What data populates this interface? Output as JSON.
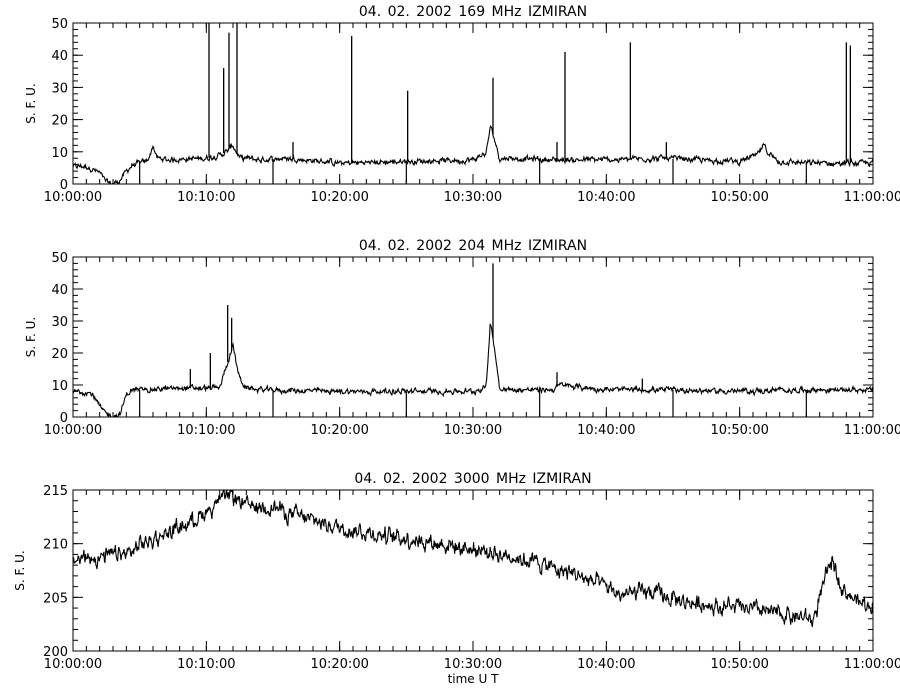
{
  "chart_data": [
    {
      "type": "line",
      "title": "04.  02.  2002    169  MHz    IZMIRAN",
      "ylabel": "S. F. U.",
      "xlabel": "",
      "xlim": [
        "10:00:00",
        "11:00:00"
      ],
      "ylim": [
        0,
        50
      ],
      "yticks": [
        "0",
        "10",
        "20",
        "30",
        "40",
        "50"
      ],
      "xticks": [
        "10:00:00",
        "10:10:00",
        "10:20:00",
        "10:30:00",
        "10:40:00",
        "10:50:00",
        "11:00:00"
      ],
      "series": [
        {
          "x_minutes": [
            0,
            1,
            2,
            2.5,
            3,
            3.5,
            4,
            4.5,
            5,
            5.5,
            5.8,
            6,
            6.3,
            7,
            10,
            11,
            11.5,
            12,
            12.5,
            13,
            14,
            16,
            20,
            25,
            30,
            31,
            31.3,
            31.6,
            32,
            33,
            36,
            40,
            44,
            50,
            51.3,
            51.8,
            52.3,
            53,
            55,
            60
          ],
          "y": [
            5.5,
            5.5,
            3.5,
            0.5,
            0,
            1,
            4,
            6,
            6.5,
            7,
            9,
            12,
            8,
            7.5,
            8,
            9,
            10,
            12,
            8,
            8,
            7.5,
            8,
            6.5,
            7,
            7.5,
            9.5,
            18,
            14,
            8,
            8,
            7.5,
            7.5,
            8,
            7,
            9,
            12,
            9,
            7,
            6.5,
            6.5
          ]
        }
      ],
      "spikes": [
        {
          "x": 10.2,
          "y": 50
        },
        {
          "x": 11.3,
          "y": 36
        },
        {
          "x": 11.7,
          "y": 47
        },
        {
          "x": 12.3,
          "y": 50
        },
        {
          "x": 16.5,
          "y": 13
        },
        {
          "x": 20.9,
          "y": 46
        },
        {
          "x": 25.1,
          "y": 29
        },
        {
          "x": 31.5,
          "y": 33
        },
        {
          "x": 36.3,
          "y": 13
        },
        {
          "x": 36.9,
          "y": 41
        },
        {
          "x": 41.8,
          "y": 44
        },
        {
          "x": 44.5,
          "y": 13
        },
        {
          "x": 58.0,
          "y": 44
        },
        {
          "x": 58.3,
          "y": 43
        }
      ],
      "dropouts": [
        5,
        15,
        25,
        35,
        45,
        55
      ]
    },
    {
      "type": "line",
      "title": "04.  02.  2002    204  MHz    IZMIRAN",
      "ylabel": "S. F. U.",
      "xlabel": "",
      "xlim": [
        "10:00:00",
        "11:00:00"
      ],
      "ylim": [
        0,
        50
      ],
      "yticks": [
        "0",
        "10",
        "20",
        "30",
        "40",
        "50"
      ],
      "xticks": [
        "10:00:00",
        "10:10:00",
        "10:20:00",
        "10:30:00",
        "10:40:00",
        "10:50:00",
        "11:00:00"
      ],
      "series": [
        {
          "x_minutes": [
            0,
            1,
            1.5,
            2,
            2.5,
            3,
            3.5,
            4,
            4.5,
            5,
            8,
            11,
            11.5,
            12,
            12.5,
            13,
            14,
            20,
            25,
            30,
            31,
            31.3,
            31.6,
            32,
            33,
            36,
            36.5,
            40,
            45,
            50,
            55,
            60
          ],
          "y": [
            8,
            8,
            7,
            3,
            1,
            0.5,
            0.5,
            7,
            8.5,
            8.5,
            9,
            9,
            16,
            22,
            12,
            9,
            8.5,
            8,
            8,
            8,
            9.5,
            30,
            22,
            9,
            8.5,
            8.5,
            10,
            8.5,
            8.5,
            8,
            8.5,
            8.5
          ]
        }
      ],
      "spikes": [
        {
          "x": 8.8,
          "y": 15
        },
        {
          "x": 10.3,
          "y": 20
        },
        {
          "x": 11.6,
          "y": 35
        },
        {
          "x": 11.9,
          "y": 31
        },
        {
          "x": 31.5,
          "y": 48
        },
        {
          "x": 36.3,
          "y": 14
        },
        {
          "x": 42.7,
          "y": 12
        }
      ],
      "dropouts": [
        5,
        15,
        25,
        35,
        45,
        55
      ]
    },
    {
      "type": "line",
      "title": "04.  02.  2002    3000  MHz    IZMIRAN",
      "ylabel": "S. F. U.",
      "xlabel": "time   U T",
      "xlim": [
        "10:00:00",
        "11:00:00"
      ],
      "ylim": [
        200,
        215
      ],
      "yticks": [
        "200",
        "205",
        "210",
        "215"
      ],
      "xticks": [
        "10:00:00",
        "10:10:00",
        "10:20:00",
        "10:30:00",
        "10:40:00",
        "10:50:00",
        "11:00:00"
      ],
      "series": [
        {
          "x_minutes": [
            0,
            2,
            4,
            6,
            8,
            10,
            11,
            12,
            13,
            15,
            17,
            20,
            22,
            25,
            30,
            33,
            35,
            38,
            40,
            41,
            43,
            46,
            50,
            53,
            55,
            55.5,
            56.5,
            57,
            57.5,
            58,
            59,
            60
          ],
          "y": [
            208.5,
            208.8,
            209,
            210.5,
            211.5,
            213,
            214,
            214.5,
            213.5,
            213.5,
            212.5,
            211.5,
            211,
            210.5,
            209.5,
            208.8,
            208.2,
            207,
            206,
            205.2,
            205.5,
            204.5,
            204,
            203.5,
            203,
            202.8,
            207,
            208.5,
            206.5,
            205.5,
            204.5,
            204.2
          ]
        }
      ]
    }
  ]
}
